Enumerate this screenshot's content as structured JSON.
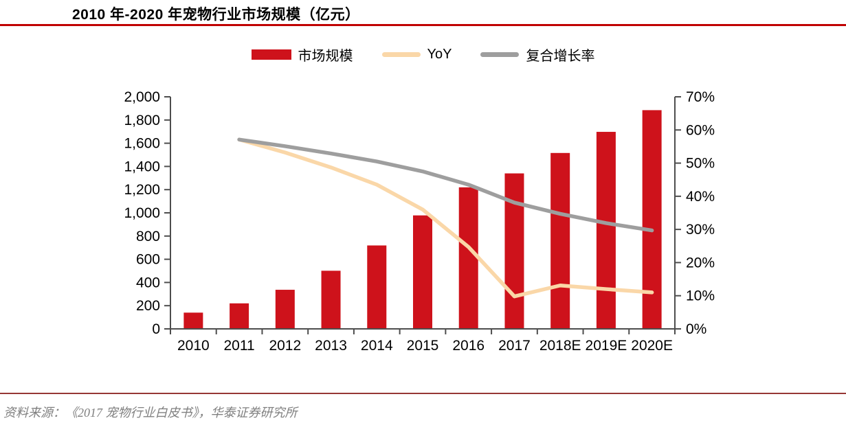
{
  "title": "2010 年-2020 年宠物行业市场规模（亿元）",
  "source_note": "资料来源：《2017 宠物行业白皮书》，华泰证券研究所",
  "colors": {
    "bar": "#CE121B",
    "yoy_line": "#FAD7A8",
    "cagr_line": "#9E9E9E",
    "title_rule": "#C00000",
    "footer_rule": "#963735",
    "axis": "#4D4D4D",
    "tick_text": "#000000",
    "footer_text": "#808080"
  },
  "legend": {
    "items": [
      {
        "label": "市场规模",
        "swatch": "rect",
        "color": "#CE121B"
      },
      {
        "label": "YoY",
        "swatch": "line",
        "color": "#FAD7A8"
      },
      {
        "label": "复合增长率",
        "swatch": "line",
        "color": "#9E9E9E"
      }
    ]
  },
  "chart_data": {
    "type": "bar",
    "title": "2010 年-2020 年宠物行业市场规模（亿元）",
    "categories": [
      "2010",
      "2011",
      "2012",
      "2013",
      "2014",
      "2015",
      "2016",
      "2017",
      "2018E",
      "2019E",
      "2020E"
    ],
    "series": [
      {
        "name": "市场规模",
        "type": "bar",
        "axis": "left",
        "unit": "亿元",
        "color": "#CE121B",
        "values": [
          140,
          220,
          337,
          501,
          719,
          978,
          1220,
          1340,
          1516,
          1698,
          1885
        ]
      },
      {
        "name": "YoY",
        "type": "line",
        "axis": "right",
        "unit": "%",
        "color": "#FAD7A8",
        "values": [
          null,
          57.1,
          53.2,
          48.7,
          43.5,
          36.0,
          24.7,
          9.8,
          13.1,
          12.0,
          11.0
        ]
      },
      {
        "name": "复合增长率",
        "type": "line",
        "axis": "right",
        "unit": "%",
        "color": "#9E9E9E",
        "values": [
          null,
          57.1,
          55.1,
          52.9,
          50.5,
          47.5,
          43.5,
          38.1,
          34.7,
          31.9,
          29.7
        ]
      }
    ],
    "axes": {
      "left": {
        "min": 0,
        "max": 2000,
        "step": 200,
        "tick_labels": [
          "0",
          "200",
          "400",
          "600",
          "800",
          "1,000",
          "1,200",
          "1,400",
          "1,600",
          "1,800",
          "2,000"
        ]
      },
      "right": {
        "min": 0,
        "max": 70,
        "step": 10,
        "tick_labels": [
          "0%",
          "10%",
          "20%",
          "30%",
          "40%",
          "50%",
          "60%",
          "70%"
        ]
      }
    },
    "grid": false,
    "legend_position": "top"
  }
}
